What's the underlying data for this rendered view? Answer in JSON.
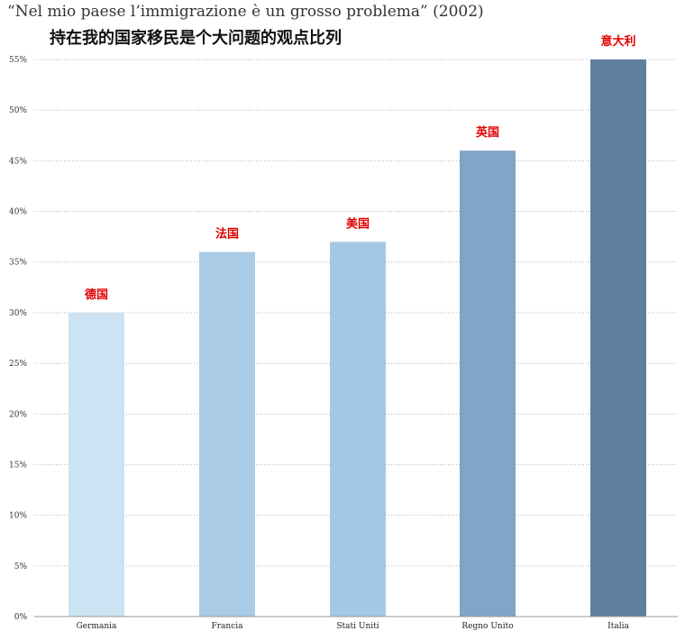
{
  "chart_data": {
    "type": "bar",
    "title": "“Nel mio paese l’immigrazione è un grosso problema” (2002)",
    "subtitle": "持在我的国家移民是个大问题的观点比列",
    "categories": [
      "Germania",
      "Francia",
      "Stati Uniti",
      "Regno Unito",
      "Italia"
    ],
    "values": [
      30,
      36,
      37,
      46,
      55
    ],
    "annotations": [
      "德国",
      "法国",
      "美国",
      "英国",
      "意大利"
    ],
    "bar_colors": [
      "#cce3f3",
      "#a9cbe5",
      "#a4c8e4",
      "#7fa5c7",
      "#5f7f9f"
    ],
    "annotation_color": "#e00000",
    "ylim": [
      0,
      55
    ],
    "yticks": [
      0,
      5,
      10,
      15,
      20,
      25,
      30,
      35,
      40,
      45,
      50,
      55
    ],
    "ytick_labels": [
      "0%",
      "5%",
      "10%",
      "15%",
      "20%",
      "25%",
      "30%",
      "35%",
      "40%",
      "45%",
      "50%",
      "55%"
    ],
    "xlabel": "",
    "ylabel": "",
    "grid": true,
    "legend": "none"
  }
}
